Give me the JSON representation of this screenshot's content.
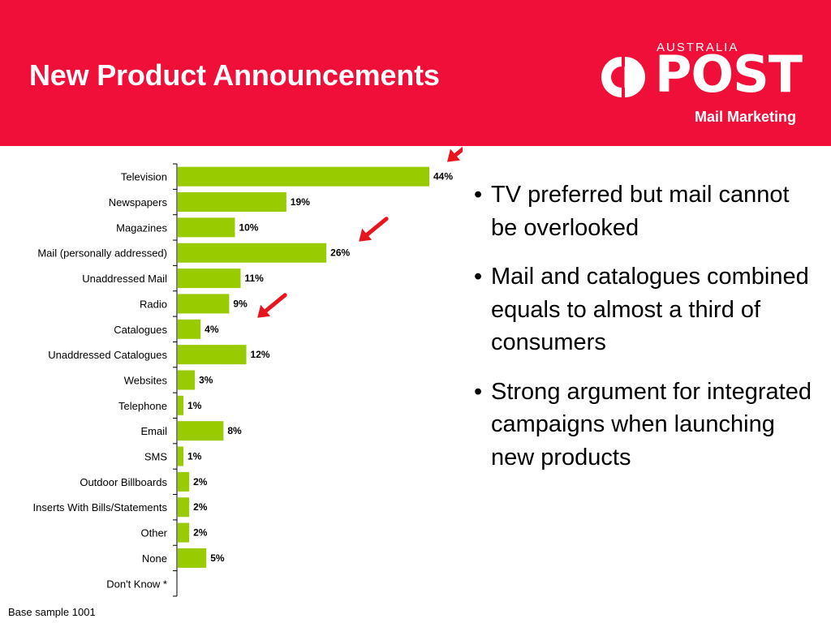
{
  "header": {
    "title": "New Product Announcements",
    "logo": {
      "country": "AUSTRALIA",
      "wordmark": "POST",
      "tagline": "Mail Marketing",
      "symbol_icon": "australia-post-symbol-icon"
    },
    "background_color": "#ef0f38"
  },
  "chart_data": {
    "type": "bar",
    "orientation": "horizontal",
    "categories": [
      "Television",
      "Newspapers",
      "Magazines",
      "Mail (personally addressed)",
      "Unaddressed Mail",
      "Radio",
      "Catalogues",
      "Unaddressed Catalogues",
      "Websites",
      "Telephone",
      "Email",
      "SMS",
      "Outdoor Billboards",
      "Inserts With Bills/Statements",
      "Other",
      "None",
      "Don't Know *"
    ],
    "values": [
      44,
      19,
      10,
      26,
      11,
      9,
      4,
      12,
      3,
      1,
      8,
      1,
      2,
      2,
      2,
      5,
      null
    ],
    "data_labels": [
      "44%",
      "19%",
      "10%",
      "26%",
      "11%",
      "9%",
      "4%",
      "12%",
      "3%",
      "1%",
      "8%",
      "1%",
      "2%",
      "2%",
      "2%",
      "5%",
      ""
    ],
    "xlim": [
      0,
      48
    ],
    "grid": false,
    "bar_color": "#99cc00",
    "highlighted_categories": [
      "Television",
      "Mail (personally addressed)",
      "Catalogues"
    ],
    "highlight_marker": "red-arrow-icon",
    "highlight_color": "#e8141e"
  },
  "bullets": [
    "TV preferred but mail cannot be overlooked",
    "Mail and catalogues combined equals to almost a third of consumers",
    "Strong argument for integrated campaigns when launching new products"
  ],
  "footnote": "Base sample 1001"
}
